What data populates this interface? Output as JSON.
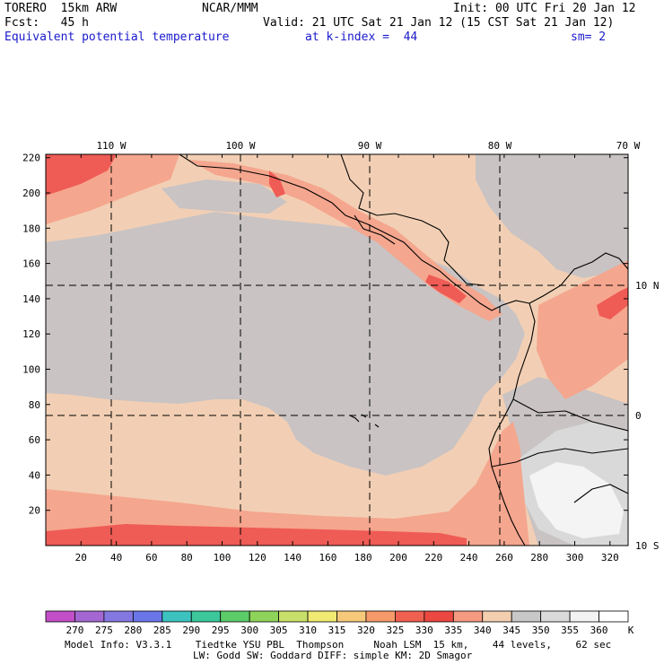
{
  "header": {
    "model": "TORERO  15km ARW",
    "org": "NCAR/MMM",
    "init": "Init: 00 UTC Fri 20 Jan 12",
    "fcst": "Fcst:   45 h",
    "valid": "Valid: 21 UTC Sat 21 Jan 12 (15 CST Sat 21 Jan 12)",
    "field": "Equivalent potential temperature",
    "level": "at k-index =  44",
    "smooth": "sm= 2"
  },
  "axes": {
    "top_lon": [
      "110 W",
      "100 W",
      "90 W",
      "80 W",
      "70 W"
    ],
    "right_lat": [
      "10 N",
      "0",
      "10 S"
    ],
    "left_ticks": [
      "20",
      "40",
      "60",
      "80",
      "100",
      "120",
      "140",
      "160",
      "180",
      "200",
      "220"
    ],
    "bottom_ticks": [
      "20",
      "40",
      "60",
      "80",
      "100",
      "120",
      "140",
      "160",
      "180",
      "200",
      "220",
      "240",
      "260",
      "280",
      "300",
      "320"
    ]
  },
  "colorbar": {
    "levels": [
      "270",
      "275",
      "280",
      "285",
      "290",
      "295",
      "300",
      "305",
      "310",
      "315",
      "320",
      "325",
      "330",
      "335",
      "340",
      "345",
      "350",
      "355",
      "360"
    ],
    "unit": "K",
    "colors": [
      "#c34fc8",
      "#a467d2",
      "#8378e0",
      "#6a76e8",
      "#3cc3c0",
      "#3cc89a",
      "#5ccc68",
      "#8fd45a",
      "#c8e06a",
      "#f0ea72",
      "#f6c87a",
      "#f69a6a",
      "#f06050",
      "#ea4840",
      "#f49a80",
      "#f3cfb0",
      "#c8c8c8",
      "#dadada",
      "#f3f3f3",
      "#ffffff"
    ]
  },
  "footer": {
    "line1": "Model Info: V3.3.1    Tiedtke YSU PBL  Thompson     Noah LSM  15 km,    44 levels,    62 sec",
    "line2": "LW: Godd SW: Goddard DIFF: simple KM: 2D Smagor"
  },
  "map_colors": {
    "background": "#f2cfb4",
    "gray": "#c9c3c3",
    "salmon": "#f5a68e",
    "red": "#ef5b55",
    "light_gray": "#d9d9d9",
    "white": "#f4f4f4"
  }
}
